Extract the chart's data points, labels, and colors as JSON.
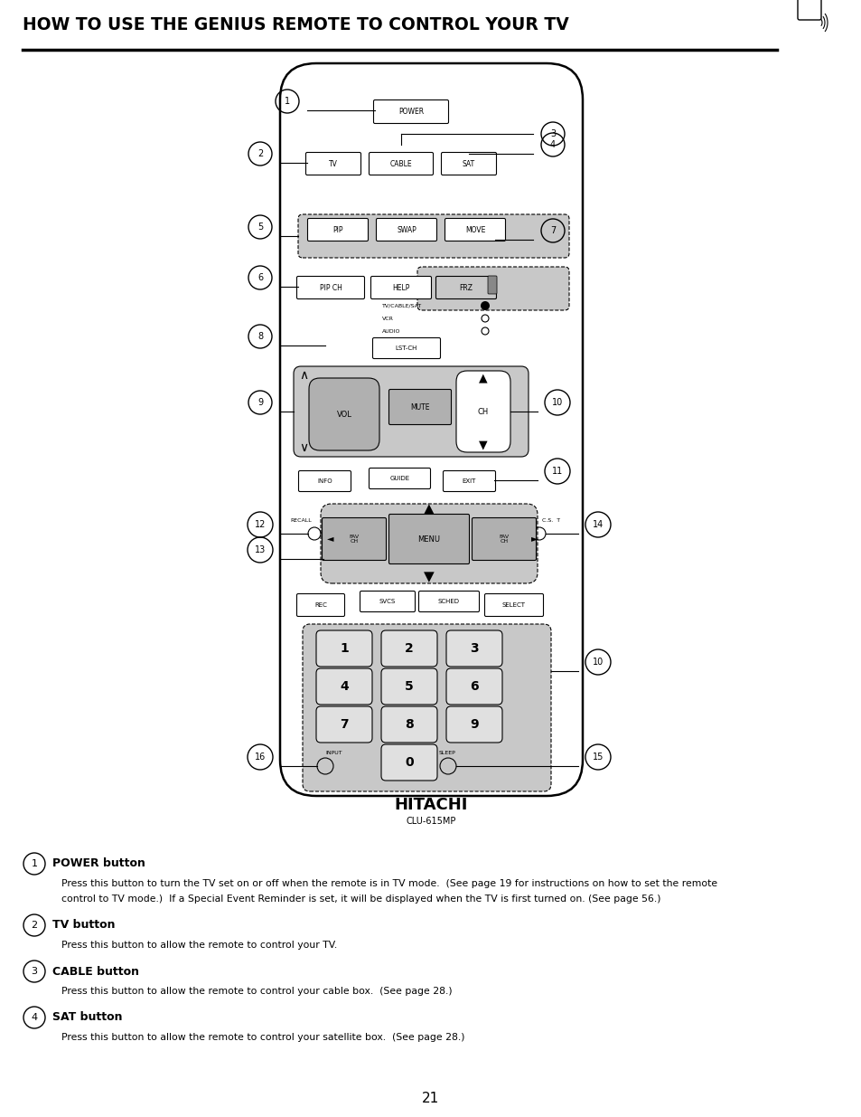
{
  "title": "HOW TO USE THE GENIUS REMOTE TO CONTROL YOUR TV",
  "page_number": "21",
  "descriptions": [
    {
      "num": "1",
      "bold": "POWER button",
      "text": "Press this button to turn the TV set on or off when the remote is in TV mode.  (See page 19 for instructions on how to set the remote\ncontrol to TV mode.)  If a Special Event Reminder is set, it will be displayed when the TV is first turned on. (See page 56.)"
    },
    {
      "num": "2",
      "bold": "TV button",
      "text": "Press this button to allow the remote to control your TV."
    },
    {
      "num": "3",
      "bold": "CABLE button",
      "text": "Press this button to allow the remote to control your cable box.  (See page 28.)"
    },
    {
      "num": "4",
      "bold": "SAT button",
      "text": "Press this button to allow the remote to control your satellite box.  (See page 28.)"
    }
  ]
}
